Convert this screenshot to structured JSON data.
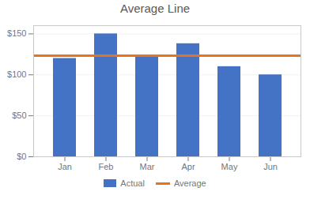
{
  "chart_data": {
    "type": "bar",
    "title": "Average Line",
    "categories": [
      "Jan",
      "Feb",
      "Mar",
      "Apr",
      "May",
      "Jun"
    ],
    "series": [
      {
        "name": "Actual",
        "type": "bar",
        "color": "#4472C4",
        "values": [
          120,
          150,
          122,
          138,
          110,
          100
        ]
      },
      {
        "name": "Average",
        "type": "line",
        "color": "#E8731A",
        "values": [
          123.33333333333333,
          123.33333333333333,
          123.33333333333333,
          123.33333333333333,
          123.33333333333333,
          123.33333333333333
        ]
      }
    ],
    "ylim": [
      0,
      160
    ],
    "yticks": [
      {
        "value": 0,
        "label": "$0"
      },
      {
        "value": 50,
        "label": "$50"
      },
      {
        "value": 100,
        "label": "$100"
      },
      {
        "value": 150,
        "label": "$150"
      }
    ],
    "grid": true,
    "legend": "bottom"
  }
}
